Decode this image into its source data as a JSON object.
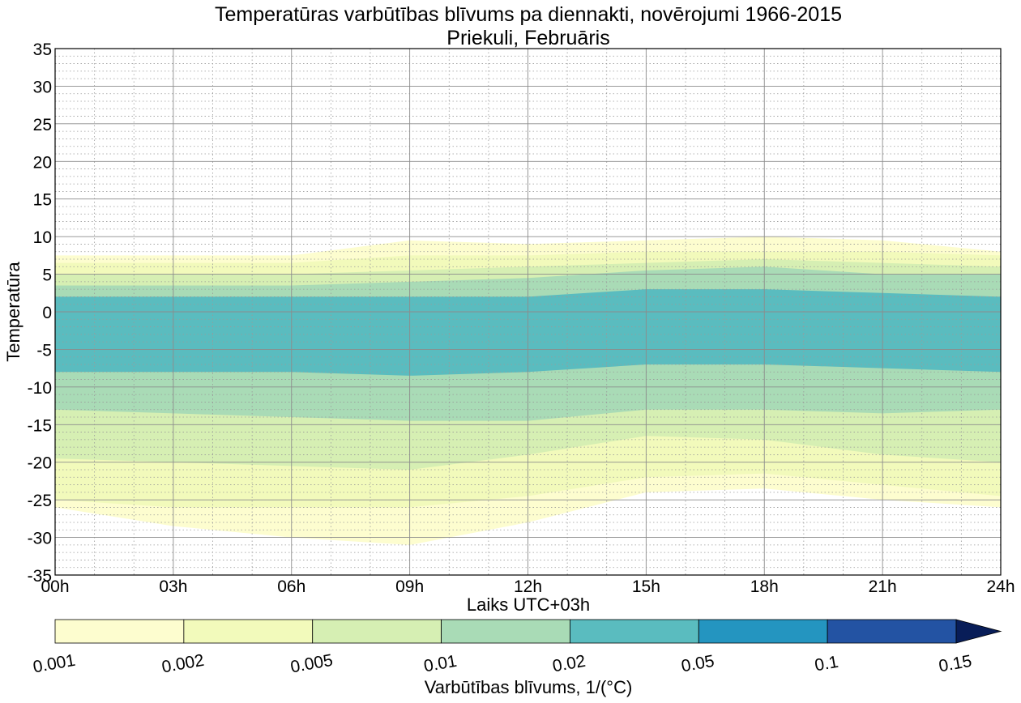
{
  "chart_data": {
    "type": "heatmap",
    "title": "Temperatūras varbūtības blīvums pa diennakti, novērojumi 1966-2015",
    "subtitle": "Priekuli, Februāris",
    "xlabel": "Laiks UTC+03h",
    "ylabel": "Temperatūra",
    "x_ticks": [
      "00h",
      "03h",
      "06h",
      "09h",
      "12h",
      "15h",
      "18h",
      "21h",
      "24h"
    ],
    "x_range_hours": [
      0,
      24
    ],
    "y_range": [
      -35,
      35
    ],
    "y_ticks": [
      35,
      30,
      25,
      20,
      15,
      10,
      5,
      0,
      -5,
      -10,
      -15,
      -20,
      -25,
      -30,
      -35
    ],
    "y_tick_labels": [
      "35",
      "30",
      "25",
      "20",
      "15",
      "10",
      "5",
      "0",
      "-5",
      "-10",
      "-15",
      "-20",
      "-25",
      "-30",
      "-35"
    ],
    "grid": true,
    "colorbar": {
      "label": "Varbūtības blīvums, 1/(°C)",
      "levels": [
        0.001,
        0.002,
        0.005,
        0.01,
        0.02,
        0.05,
        0.1,
        0.15
      ],
      "level_labels": [
        "0.001",
        "0.002",
        "0.005",
        "0.01",
        "0.02",
        "0.05",
        "0.1",
        "0.15"
      ],
      "colors": [
        "#fdfdcf",
        "#f2fabb",
        "#d6efb3",
        "#a9dbb6",
        "#5abcbf",
        "#2495c0",
        "#2353a3",
        "#081d58"
      ],
      "extend": "max"
    },
    "bands_hourly": {
      "x": [
        0,
        3,
        6,
        9,
        12,
        15,
        18,
        21,
        24
      ],
      "level_0_001": {
        "top": [
          7.5,
          7.5,
          7.5,
          9.5,
          9,
          9.5,
          10,
          9.5,
          8
        ],
        "bottom": [
          -26,
          -28.5,
          -30,
          -31,
          -28,
          -24,
          -23.5,
          -25,
          -26
        ]
      },
      "level_0_002": {
        "top": [
          6.5,
          6.5,
          6.5,
          7.5,
          7.5,
          8,
          8,
          8,
          7.5
        ],
        "bottom": [
          -25,
          -26,
          -26,
          -26,
          -24.5,
          -22,
          -21.5,
          -23,
          -24.5
        ]
      },
      "level_0_005": {
        "top": [
          5,
          5,
          5,
          5.5,
          6,
          6.5,
          7,
          6.5,
          6
        ],
        "bottom": [
          -19.5,
          -20,
          -20.5,
          -21,
          -19,
          -16.5,
          -17,
          -19,
          -20
        ]
      },
      "level_0_01": {
        "top": [
          3.5,
          3.5,
          3.5,
          4,
          4.5,
          5.5,
          6,
          5,
          5
        ],
        "bottom": [
          -13,
          -13.5,
          -14,
          -14.5,
          -14.5,
          -13,
          -13,
          -13.5,
          -13
        ]
      },
      "level_0_02": {
        "top": [
          2,
          2,
          2,
          2,
          2,
          3,
          3,
          2.5,
          2
        ],
        "bottom": [
          -8,
          -8,
          -8,
          -8.5,
          -8,
          -7,
          -7,
          -7.5,
          -8
        ]
      }
    }
  }
}
